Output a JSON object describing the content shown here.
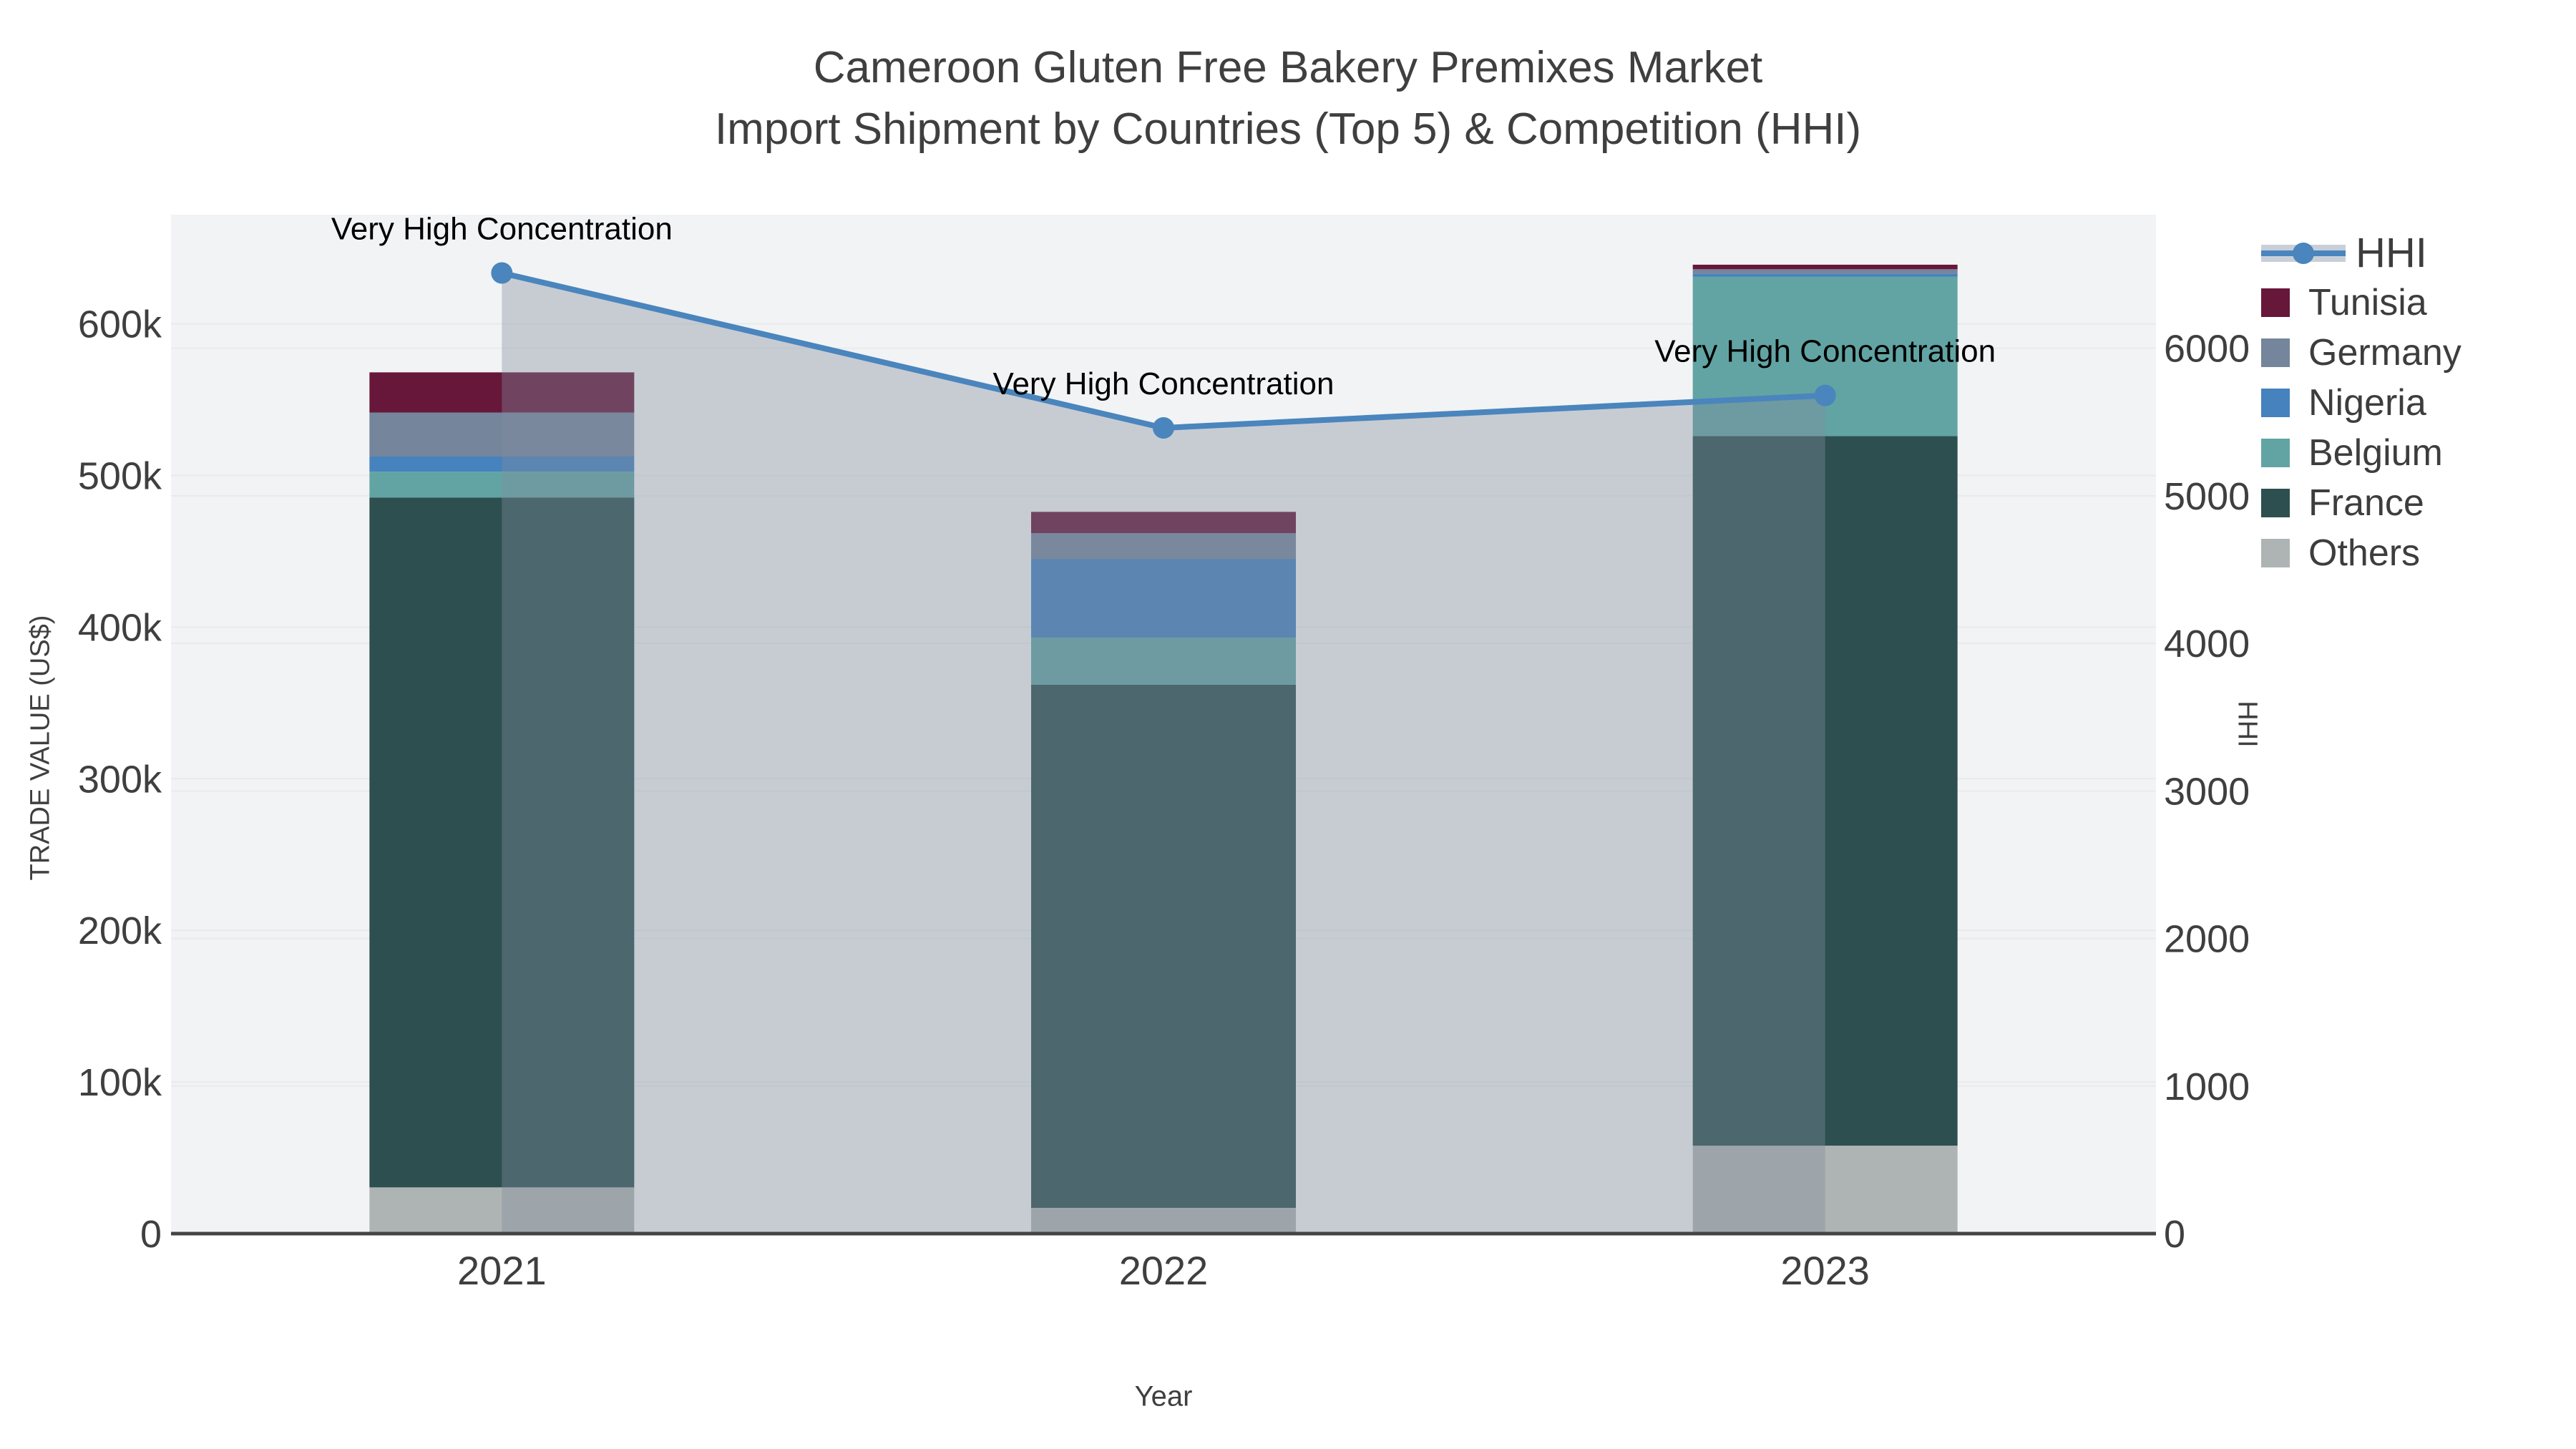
{
  "title": {
    "line1": "Cameroon Gluten Free Bakery Premixes Market",
    "line2": "Import Shipment by Countries (Top 5) & Competition (HHI)"
  },
  "chart_data": {
    "type": "combo: stacked bar + line (secondary axis)",
    "categories": [
      "2021",
      "2022",
      "2023"
    ],
    "stack_order_bottom_to_top": [
      "Others",
      "France",
      "Belgium",
      "Nigeria",
      "Germany",
      "Tunisia"
    ],
    "series": [
      {
        "name": "Tunisia",
        "color": "#67173a",
        "values": [
          26500,
          14000,
          3000
        ]
      },
      {
        "name": "Germany",
        "color": "#75859b",
        "values": [
          29000,
          17000,
          3000
        ]
      },
      {
        "name": "Nigeria",
        "color": "#4682bd",
        "values": [
          10000,
          52000,
          2000
        ]
      },
      {
        "name": "Belgium",
        "color": "#62a4a4",
        "values": [
          17000,
          31000,
          105000
        ]
      },
      {
        "name": "France",
        "color": "#2d4f4f",
        "values": [
          455000,
          345000,
          468000
        ]
      },
      {
        "name": "Others",
        "color": "#aeb4b4",
        "values": [
          30500,
          17000,
          58000
        ]
      }
    ],
    "bar_totals": [
      568000,
      476000,
      639000
    ],
    "line_series": {
      "name": "HHI",
      "values": [
        6510,
        5460,
        5680
      ],
      "color": "#4a85bd",
      "area_fill": "rgba(130,142,158,0.38)",
      "axis": "right"
    },
    "annotations": [
      {
        "text": "Very High Concentration",
        "category": "2021"
      },
      {
        "text": "Very High Concentration",
        "category": "2022"
      },
      {
        "text": "Very High Concentration",
        "category": "2023"
      }
    ],
    "xlabel": "Year",
    "ylabel_left": "TRADE VALUE (US$)",
    "ylabel_right": "HHI",
    "yticks_left": [
      {
        "v": 0,
        "label": "0"
      },
      {
        "v": 100000,
        "label": "100k"
      },
      {
        "v": 200000,
        "label": "200k"
      },
      {
        "v": 300000,
        "label": "300k"
      },
      {
        "v": 400000,
        "label": "400k"
      },
      {
        "v": 500000,
        "label": "500k"
      },
      {
        "v": 600000,
        "label": "600k"
      }
    ],
    "yticks_right": [
      {
        "v": 0,
        "label": "0"
      },
      {
        "v": 1000,
        "label": "1000"
      },
      {
        "v": 2000,
        "label": "2000"
      },
      {
        "v": 3000,
        "label": "3000"
      },
      {
        "v": 4000,
        "label": "4000"
      },
      {
        "v": 5000,
        "label": "5000"
      },
      {
        "v": 6000,
        "label": "6000"
      }
    ],
    "ylim_left": [
      0,
      672000
    ],
    "ylim_right": [
      0,
      6905
    ],
    "grid": true,
    "legend_position": "right"
  },
  "legend": {
    "items": [
      {
        "label": "HHI",
        "type": "line"
      },
      {
        "label": "Tunisia",
        "type": "swatch",
        "color": "#67173a"
      },
      {
        "label": "Germany",
        "type": "swatch",
        "color": "#75859b"
      },
      {
        "label": "Nigeria",
        "type": "swatch",
        "color": "#4682bd"
      },
      {
        "label": "Belgium",
        "type": "swatch",
        "color": "#62a4a4"
      },
      {
        "label": "France",
        "type": "swatch",
        "color": "#2d4f4f"
      },
      {
        "label": "Others",
        "type": "swatch",
        "color": "#aeb4b4"
      }
    ]
  },
  "colors": {
    "plot_bg": "#f2f3f4",
    "gridline": "#e8eaed",
    "axis_line": "#444444",
    "tick_text": "#3f3f3f",
    "annotation_text": "#000000",
    "hhi_line": "#4a85bd",
    "hhi_area": "rgba(130,142,158,0.38)"
  }
}
